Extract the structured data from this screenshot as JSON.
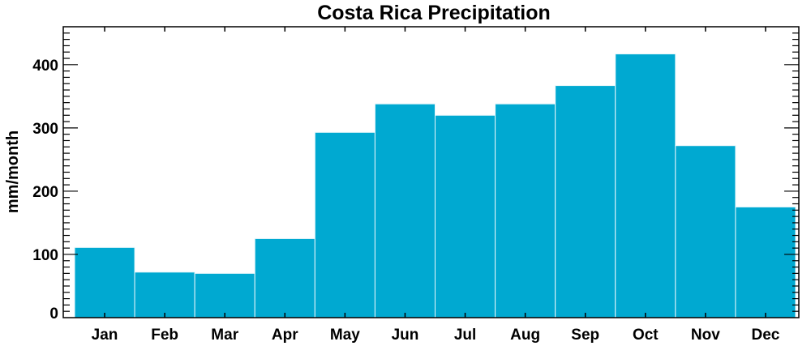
{
  "chart_data": {
    "type": "bar",
    "title": "Costa Rica Precipitation",
    "xlabel": "",
    "ylabel": "mm/month",
    "categories": [
      "Jan",
      "Feb",
      "Mar",
      "Apr",
      "May",
      "Jun",
      "Jul",
      "Aug",
      "Sep",
      "Oct",
      "Nov",
      "Dec"
    ],
    "values": [
      111,
      72,
      70,
      125,
      293,
      338,
      320,
      338,
      367,
      417,
      272,
      175
    ],
    "ylim": [
      0,
      460
    ],
    "yticks": [
      0,
      100,
      200,
      300,
      400
    ],
    "bar_color": "#00a9d1",
    "grid": false
  }
}
